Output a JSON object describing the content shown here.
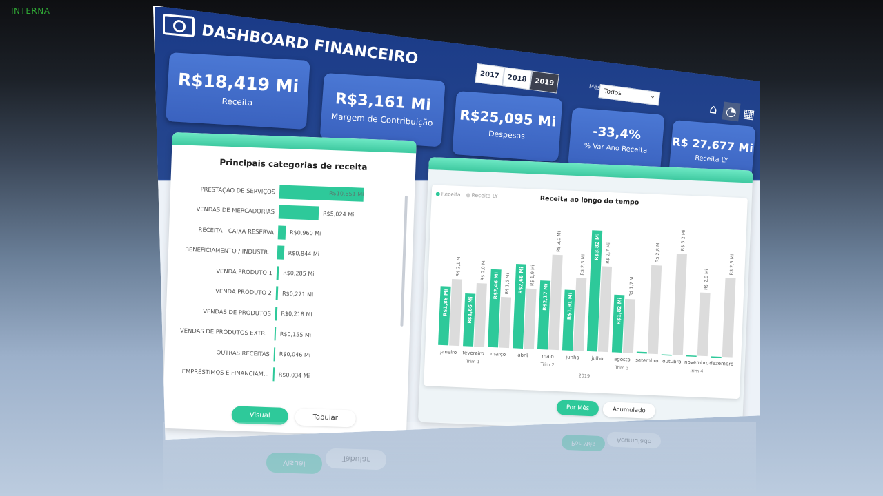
{
  "corner_tag": "INTERNA",
  "header": {
    "title": "DASHBOARD FINANCEIRO",
    "years": [
      "2017",
      "2018",
      "2019"
    ],
    "active_year": "2019",
    "month_label": "Mês",
    "month_value": "Todos",
    "nav_icons": [
      "home-icon",
      "gauge-icon",
      "table-icon"
    ]
  },
  "kpis": [
    {
      "value": "R$18,419 Mi",
      "label": "Receita"
    },
    {
      "value": "R$3,161 Mi",
      "label": "Margem de Contribuição"
    },
    {
      "value": "R$25,095 Mi",
      "label": "Despesas"
    },
    {
      "value": "-33,4%",
      "label": "% Var Ano Receita"
    },
    {
      "value": "R$ 27,677 Mi",
      "label": "Receita LY"
    }
  ],
  "left_card": {
    "title": "Principais categorias de receita",
    "toggle": [
      "Visual",
      "Tabular"
    ],
    "active_toggle": "Visual"
  },
  "right_card": {
    "toggle": [
      "Por Mês",
      "Acumulado"
    ],
    "active_toggle": "Por Mês"
  },
  "colors": {
    "teal": "#2ec99a",
    "grey": "#dcdcdc",
    "navy": "#1a3a87",
    "kpi": "#4b78d4"
  },
  "chart_data": [
    {
      "type": "bar",
      "orientation": "horizontal",
      "title": "Principais categorias de receita",
      "categories": [
        "PRESTAÇÃO DE SERVIÇOS",
        "VENDAS DE MERCADORIAS",
        "RECEITA - CAIXA RESERVA",
        "BENEFICIAMENTO / INDUSTR...",
        "VENDA PRODUTO 1",
        "VENDA PRODUTO 2",
        "VENDAS DE PRODUTOS",
        "VENDAS DE PRODUTOS EXTR...",
        "OUTRAS RECEITAS",
        "EMPRÉSTIMOS E FINANCIAM..."
      ],
      "values": [
        10.551,
        5.024,
        0.96,
        0.844,
        0.285,
        0.271,
        0.218,
        0.155,
        0.046,
        0.034
      ],
      "value_labels": [
        "R$10,551 Mi",
        "R$5,024 Mi",
        "R$0,960 Mi",
        "R$0,844 Mi",
        "R$0,285 Mi",
        "R$0,271 Mi",
        "R$0,218 Mi",
        "R$0,155 Mi",
        "R$0,046 Mi",
        "R$0,034 Mi"
      ]
    },
    {
      "type": "bar",
      "title": "Receita ao longo do tempo",
      "categories": [
        "janeiro",
        "fevereiro",
        "março",
        "abril",
        "maio",
        "junho",
        "julho",
        "agosto",
        "setembro",
        "outubro",
        "novembro",
        "dezembro"
      ],
      "quarters": [
        "Trim 1",
        "Trim 2",
        "Trim 3",
        "Trim 4"
      ],
      "year_label": "2019",
      "series": [
        {
          "name": "Receita",
          "values": [
            1.86,
            1.66,
            2.46,
            2.66,
            2.17,
            1.91,
            3.82,
            1.82,
            0.05,
            0,
            0,
            0
          ],
          "labels": [
            "R$1,86 Mi",
            "R$1,66 Mi",
            "R$2,46 Mi",
            "R$2,66 Mi",
            "R$2,17 Mi",
            "R$1,91 Mi",
            "R$3,82 Mi",
            "R$1,82 Mi",
            "",
            "",
            "",
            ""
          ]
        },
        {
          "name": "Receita LY",
          "values": [
            2.1,
            2.0,
            1.6,
            1.9,
            3.0,
            2.3,
            2.7,
            1.7,
            2.8,
            3.2,
            2.0,
            2.5
          ],
          "labels": [
            "R$ 2,1 Mi",
            "R$ 2,0 Mi",
            "R$ 1,6 Mi",
            "R$ 1,9 Mi",
            "R$ 3,0 Mi",
            "R$ 2,3 Mi",
            "R$ 2,7 Mi",
            "R$ 1,7 Mi",
            "R$ 2,8 Mi",
            "R$ 3,2 Mi",
            "R$ 2,0 Mi",
            "R$ 2,5 Mi"
          ]
        }
      ],
      "legend_position": "top-left",
      "ylim": [
        0,
        4
      ]
    }
  ]
}
